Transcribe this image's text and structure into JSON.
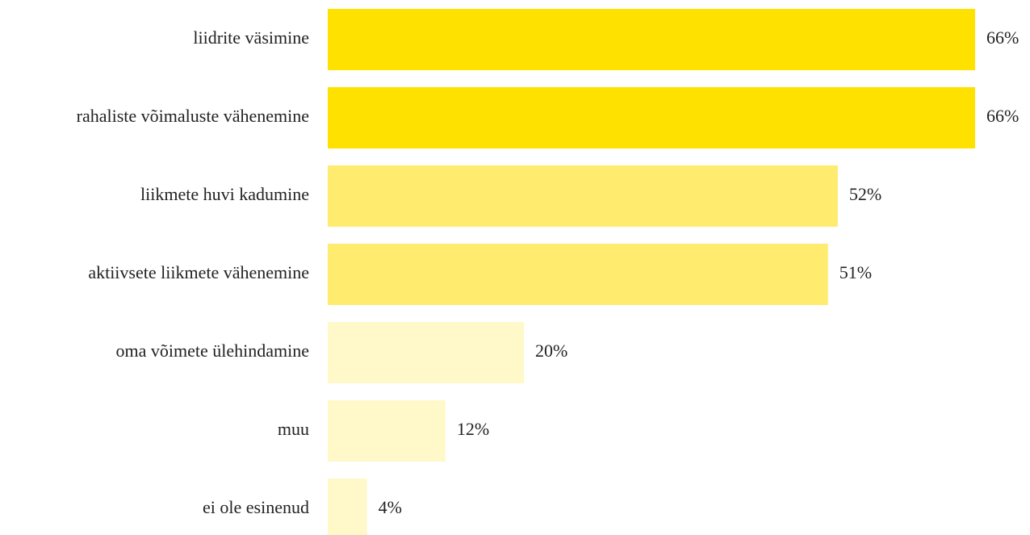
{
  "chart_data": {
    "type": "bar",
    "categories": [
      "liidrite väsimine",
      "rahaliste võimaluste vähenemine",
      "liikmete huvi kadumine",
      "aktiivsete liikmete vähenemine",
      "oma võimete ülehindamine",
      "muu",
      "ei ole esinenud"
    ],
    "values": [
      66,
      66,
      52,
      51,
      20,
      12,
      4
    ],
    "value_labels": [
      "66%",
      "66%",
      "52%",
      "51%",
      "20%",
      "12%",
      "4%"
    ],
    "colors": [
      "#ffe100",
      "#ffe100",
      "#ffeb6e",
      "#ffeb6e",
      "#fff8c8",
      "#fff8c8",
      "#fff8c8"
    ]
  }
}
